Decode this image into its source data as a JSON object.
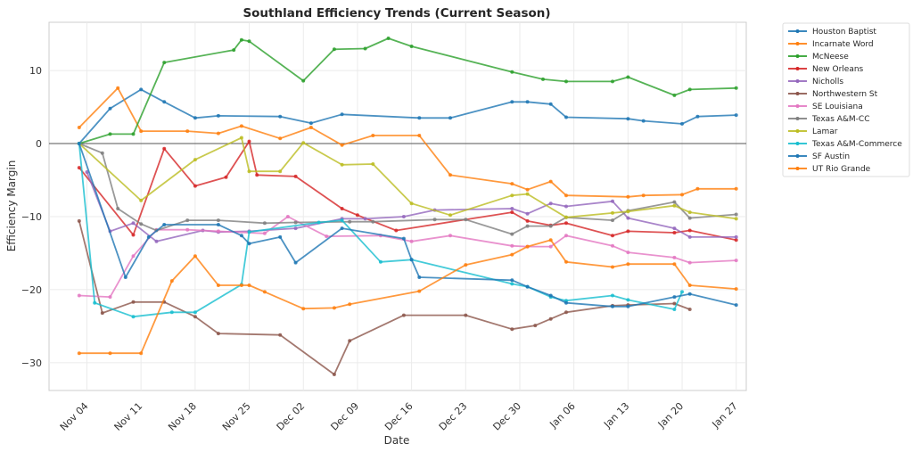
{
  "chart_data": {
    "type": "line",
    "title": "Southland Efficiency Trends (Current Season)",
    "xlabel": "Date",
    "ylabel": "Efficiency Margin",
    "x_ticks": [
      "Nov 04",
      "Nov 11",
      "Nov 18",
      "Nov 25",
      "Dec 02",
      "Dec 09",
      "Dec 16",
      "Dec 23",
      "Dec 30",
      "Jan 06",
      "Jan 13",
      "Jan 20",
      "Jan 27"
    ],
    "x_tick_days": [
      0,
      7,
      14,
      21,
      28,
      35,
      42,
      49,
      56,
      63,
      70,
      77,
      84
    ],
    "x_origin": "Nov 04",
    "x_unit": "days since Nov 04",
    "xlim": [
      -4.9,
      85.3
    ],
    "y_ticks": [
      10,
      0,
      -10,
      -20,
      -30
    ],
    "ylim": [
      -33.8,
      16.6
    ],
    "reference_line_y": 0,
    "grid": true,
    "legend_position": "outside-top-right",
    "series": [
      {
        "name": "Houston Baptist",
        "color": "#1f77b4",
        "x": [
          -1,
          3,
          7,
          10,
          14,
          17,
          25,
          29,
          33,
          43,
          47,
          55,
          57,
          60,
          62,
          70,
          72,
          77,
          79,
          84
        ],
        "y": [
          0,
          4.8,
          7.4,
          5.7,
          3.5,
          3.8,
          3.7,
          2.8,
          4.0,
          3.5,
          3.5,
          5.7,
          5.7,
          5.4,
          3.6,
          3.4,
          3.1,
          2.7,
          3.7,
          3.9
        ]
      },
      {
        "name": "Incarnate Word",
        "color": "#ff7f0e",
        "x": [
          -1,
          4,
          7,
          13,
          17,
          20,
          25,
          29,
          33,
          37,
          43,
          47,
          55,
          57,
          60,
          62,
          70,
          72,
          77,
          79,
          84
        ],
        "y": [
          2.2,
          7.6,
          1.7,
          1.7,
          1.4,
          2.4,
          0.7,
          2.2,
          -0.2,
          1.1,
          1.1,
          -4.3,
          -5.5,
          -6.3,
          -5.2,
          -7.1,
          -7.3,
          -7.1,
          -7.0,
          -6.2,
          -6.2
        ]
      },
      {
        "name": "McNeese",
        "color": "#2ca02c",
        "x": [
          -1,
          3,
          6,
          10,
          19,
          20,
          21,
          28,
          32,
          36,
          39,
          42,
          55,
          59,
          62,
          68,
          70,
          76,
          78,
          84
        ],
        "y": [
          0,
          1.3,
          1.3,
          11.1,
          12.8,
          14.2,
          14.0,
          8.6,
          12.9,
          13.0,
          14.4,
          13.3,
          9.8,
          8.8,
          8.5,
          8.5,
          9.1,
          6.6,
          7.4,
          7.6
        ]
      },
      {
        "name": "New Orleans",
        "color": "#d62728",
        "x": [
          -1,
          6,
          10,
          14,
          18,
          21,
          22,
          27,
          33,
          35,
          40,
          55,
          57,
          60,
          62,
          68,
          70,
          76,
          78,
          84
        ],
        "y": [
          -3.3,
          -12.5,
          -0.7,
          -5.8,
          -4.6,
          0.3,
          -4.3,
          -4.5,
          -8.9,
          -9.8,
          -11.9,
          -9.4,
          -10.6,
          -11.2,
          -10.9,
          -12.6,
          -12.0,
          -12.2,
          -11.9,
          -13.2
        ]
      },
      {
        "name": "Nicholls",
        "color": "#9467bd",
        "x": [
          0,
          3,
          6,
          9,
          15,
          17,
          21,
          27,
          33,
          36,
          41,
          45,
          55,
          57,
          60,
          62,
          68,
          70,
          76,
          78,
          84
        ],
        "y": [
          -3.9,
          -12.0,
          -10.9,
          -13.4,
          -11.9,
          -12.1,
          -12.0,
          -11.6,
          -10.3,
          -10.3,
          -10.0,
          -9.1,
          -8.9,
          -9.6,
          -8.2,
          -8.6,
          -7.9,
          -10.2,
          -11.6,
          -12.8,
          -12.8
        ]
      },
      {
        "name": "Northwestern St",
        "color": "#8c564b",
        "x": [
          -1,
          2,
          6,
          10,
          14,
          17,
          25,
          32,
          34,
          41,
          49,
          55,
          58,
          60,
          62,
          68,
          70,
          76,
          78
        ],
        "y": [
          -10.6,
          -23.2,
          -21.7,
          -21.7,
          -23.7,
          -26.0,
          -26.2,
          -31.6,
          -27.0,
          -23.5,
          -23.5,
          -25.4,
          -24.9,
          -24.0,
          -23.1,
          -22.2,
          -22.1,
          -21.9,
          -22.7
        ]
      },
      {
        "name": "SE Louisiana",
        "color": "#e377c2",
        "x": [
          -1,
          3,
          6,
          9,
          13,
          17,
          23,
          26,
          31,
          38,
          42,
          47,
          55,
          57,
          60,
          62,
          68,
          70,
          76,
          78,
          84
        ],
        "y": [
          -20.8,
          -21.0,
          -15.4,
          -11.8,
          -11.8,
          -12.0,
          -12.3,
          -10.0,
          -12.7,
          -12.6,
          -13.4,
          -12.6,
          -14.0,
          -14.1,
          -14.1,
          -12.6,
          -14.0,
          -14.9,
          -15.6,
          -16.3,
          -16.0
        ]
      },
      {
        "name": "Texas A&M-CC",
        "color": "#7f7f7f",
        "x": [
          -1,
          2,
          4,
          7,
          9,
          13,
          17,
          23,
          27,
          34,
          37,
          45,
          49,
          55,
          57,
          60,
          62,
          68,
          70,
          76,
          78,
          84
        ],
        "y": [
          0,
          -1.3,
          -8.9,
          -11.0,
          -11.9,
          -10.5,
          -10.5,
          -10.9,
          -10.8,
          -10.7,
          -10.7,
          -10.4,
          -10.4,
          -12.4,
          -11.3,
          -11.3,
          -10.1,
          -10.5,
          -9.2,
          -8.0,
          -10.2,
          -9.7
        ]
      },
      {
        "name": "Lamar",
        "color": "#bcbd22",
        "x": [
          -1,
          7,
          14,
          20,
          21,
          25,
          28,
          33,
          37,
          42,
          47,
          55,
          57,
          62,
          68,
          70,
          76,
          78,
          84
        ],
        "y": [
          0,
          -7.8,
          -2.2,
          0.8,
          -3.8,
          -3.8,
          0.1,
          -2.9,
          -2.8,
          -8.2,
          -9.8,
          -7.1,
          -6.9,
          -10.1,
          -9.5,
          -9.3,
          -8.5,
          -9.4,
          -10.3
        ]
      },
      {
        "name": "Texas A&M-Commerce",
        "color": "#17becf",
        "x": [
          -1,
          1,
          6,
          11,
          14,
          20,
          21,
          30,
          33,
          38,
          42,
          55,
          57,
          60,
          62,
          68,
          70,
          76,
          77
        ],
        "y": [
          0,
          -21.8,
          -23.7,
          -23.1,
          -23.1,
          -19.3,
          -12.1,
          -10.8,
          -10.5,
          -16.2,
          -15.9,
          -19.2,
          -19.6,
          -21.0,
          -21.5,
          -20.8,
          -21.4,
          -22.7,
          -20.3
        ]
      },
      {
        "name": "SF Austin",
        "color": "#1f77b4",
        "x": [
          -1,
          5,
          8,
          10,
          17,
          20,
          21,
          25,
          27,
          33,
          41,
          42,
          43,
          55,
          57,
          60,
          62,
          68,
          70,
          76,
          78,
          84
        ],
        "y": [
          0,
          -18.3,
          -12.8,
          -11.1,
          -11.1,
          -12.6,
          -13.7,
          -12.8,
          -16.3,
          -11.6,
          -13.0,
          -15.9,
          -18.3,
          -18.7,
          -19.6,
          -20.8,
          -21.8,
          -22.3,
          -22.3,
          -21.0,
          -20.6,
          -22.1
        ]
      },
      {
        "name": "UT Rio Grande",
        "color": "#ff7f0e",
        "x": [
          -1,
          3,
          7,
          11,
          14,
          17,
          20,
          21,
          23,
          28,
          32,
          34,
          43,
          49,
          55,
          57,
          60,
          62,
          68,
          70,
          76,
          78,
          84
        ],
        "y": [
          -28.7,
          -28.7,
          -28.7,
          -18.8,
          -15.4,
          -19.4,
          -19.4,
          -19.4,
          -20.3,
          -22.6,
          -22.5,
          -22.0,
          -20.2,
          -16.6,
          -15.2,
          -14.1,
          -13.2,
          -16.2,
          -16.9,
          -16.5,
          -16.5,
          -19.4,
          -19.9
        ]
      }
    ]
  }
}
